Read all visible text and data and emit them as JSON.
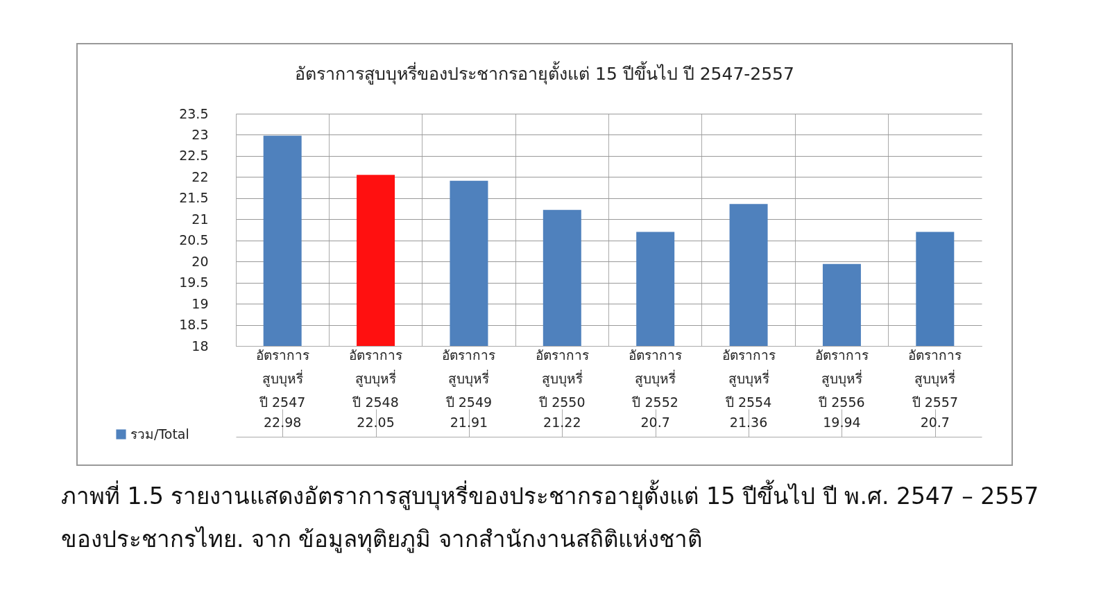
{
  "chart_data": {
    "type": "bar",
    "title": "อัตราการสูบบุหรี่ของประชากรอายุตั้งแต่ 15 ปีขึ้นไป ปี 2547-2557",
    "categories": [
      "อัตราการ\nสูบบุหรี่\nปี 2547",
      "อัตราการ\nสูบบุหรี่\nปี 2548",
      "อัตราการ\nสูบบุหรี่\nปี 2549",
      "อัตราการ\nสูบบุหรี่\nปี 2550",
      "อัตราการ\nสูบบุหรี่\nปี 2552",
      "อัตราการ\nสูบบุหรี่\nปี 2554",
      "อัตราการ\nสูบบุหรี่\nปี 2556",
      "อัตราการ\nสูบบุหรี่\nปี 2557"
    ],
    "series": [
      {
        "name": "รวม/Total",
        "color": "#4f81bd",
        "colors": [
          "#4f81bd",
          "#ff1010",
          "#4f81bd",
          "#4f81bd",
          "#4f81bd",
          "#4f81bd",
          "#4f81bd",
          "#4a7ebb"
        ],
        "values": [
          22.98,
          22.05,
          21.91,
          21.22,
          20.7,
          21.36,
          19.94,
          20.7
        ]
      }
    ],
    "ylim": [
      18,
      23.5
    ],
    "yticks": [
      18,
      18.5,
      19,
      19.5,
      20,
      20.5,
      21,
      21.5,
      22,
      22.5,
      23,
      23.5
    ],
    "grid": "y",
    "legend": "bottom left",
    "data_labels": true,
    "annotations": [
      "ภาพที่ 1.5 รายงานแสดงอัตราการสูบบุหรี่ของประชากรอายุตั้งแต่ 15 ปีขึ้นไป ปี พ.ศ. 2547 – 2557 ของประชากรไทย. จาก ข้อมูลทุติยภูมิ จากสำนักงานสถิติแห่งชาติ"
    ]
  }
}
